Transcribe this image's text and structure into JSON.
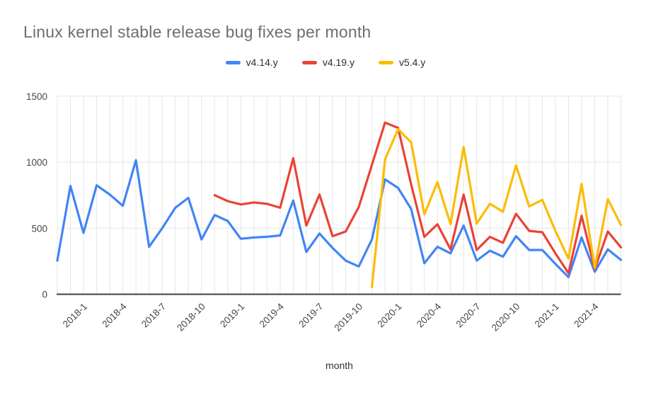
{
  "title": "Linux kernel stable release bug fixes per month",
  "chart_data": {
    "type": "line",
    "title": "Linux kernel stable release bug fixes per month",
    "xlabel": "month",
    "ylabel": "",
    "ylim": [
      0,
      1500
    ],
    "y_ticks": [
      0,
      500,
      1000,
      1500
    ],
    "grid": "both",
    "legend_position": "top",
    "grid_color": "#e6e6e6",
    "axis_color": "#424242",
    "tick_label_color": "#464646",
    "x": [
      "2017-11",
      "2017-12",
      "2018-1",
      "2018-2",
      "2018-3",
      "2018-4",
      "2018-5",
      "2018-6",
      "2018-7",
      "2018-8",
      "2018-9",
      "2018-10",
      "2018-11",
      "2018-12",
      "2019-1",
      "2019-2",
      "2019-3",
      "2019-4",
      "2019-5",
      "2019-6",
      "2019-7",
      "2019-8",
      "2019-9",
      "2019-10",
      "2019-11",
      "2019-12",
      "2020-1",
      "2020-2",
      "2020-3",
      "2020-4",
      "2020-5",
      "2020-6",
      "2020-7",
      "2020-8",
      "2020-9",
      "2020-10",
      "2020-11",
      "2020-12",
      "2021-1",
      "2021-2",
      "2021-3",
      "2021-4",
      "2021-5",
      "2021-6"
    ],
    "x_tick_labels": [
      "2018-1",
      "2018-4",
      "2018-7",
      "2018-10",
      "2019-1",
      "2019-4",
      "2019-7",
      "2019-10",
      "2020-1",
      "2020-4",
      "2020-7",
      "2020-10",
      "2021-1",
      "2021-4"
    ],
    "series": [
      {
        "name": "v4.14.y",
        "color": "#4285F4",
        "start": "2017-11",
        "values": [
          255,
          820,
          465,
          825,
          755,
          670,
          1015,
          360,
          500,
          655,
          730,
          415,
          600,
          555,
          420,
          430,
          435,
          445,
          710,
          320,
          460,
          350,
          255,
          210,
          415,
          870,
          805,
          645,
          235,
          360,
          310,
          520,
          255,
          330,
          285,
          440,
          335,
          335,
          230,
          130,
          430,
          170,
          340,
          260
        ]
      },
      {
        "name": "v4.19.y",
        "color": "#EA4335",
        "start": "2018-11",
        "values": [
          750,
          705,
          680,
          695,
          685,
          655,
          1030,
          520,
          755,
          440,
          475,
          660,
          980,
          1300,
          1260,
          830,
          435,
          530,
          340,
          755,
          335,
          435,
          390,
          610,
          480,
          470,
          310,
          160,
          595,
          190,
          475,
          355
        ]
      },
      {
        "name": "v5.4.y",
        "color": "#FBBC04",
        "start": "2019-11",
        "values": [
          55,
          1020,
          1250,
          1150,
          605,
          850,
          530,
          1115,
          535,
          685,
          625,
          975,
          665,
          715,
          480,
          270,
          835,
          200,
          720,
          525
        ]
      }
    ]
  }
}
